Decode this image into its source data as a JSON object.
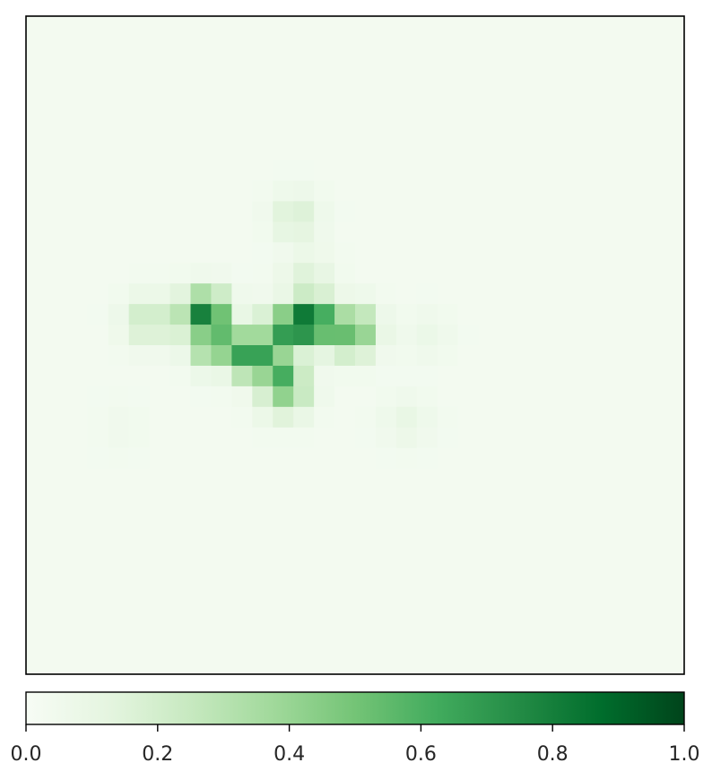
{
  "chart_data": {
    "type": "heatmap",
    "title": "",
    "xlabel": "",
    "ylabel": "",
    "grid": false,
    "axes_ticks_visible": false,
    "colormap": {
      "name": "Greens",
      "stops": [
        "#f7fcf5",
        "#e5f5e0",
        "#c7e9c0",
        "#a1d99b",
        "#74c476",
        "#41ab5d",
        "#238b45",
        "#006d2c",
        "#00441b"
      ]
    },
    "value_range": [
      0.0,
      1.0
    ],
    "grid_size": [
      32,
      32
    ],
    "background_value": 0.03,
    "intensity_regions": [
      {
        "shape": "blob",
        "row": 14.9,
        "col": 13.8,
        "value": 0.99
      },
      {
        "shape": "blob",
        "row": 14.6,
        "col": 8.7,
        "value": 0.82
      },
      {
        "shape": "blob",
        "row": 16.4,
        "col": 11.0,
        "value": 0.8
      },
      {
        "shape": "blob",
        "row": 15.3,
        "col": 12.7,
        "value": 0.72
      },
      {
        "shape": "blob",
        "row": 15.8,
        "col": 9.2,
        "value": 0.62
      },
      {
        "shape": "blob",
        "row": 17.3,
        "col": 12.3,
        "value": 0.65
      },
      {
        "shape": "blob",
        "row": 15.3,
        "col": 15.8,
        "value": 0.58
      },
      {
        "shape": "blob",
        "row": 18.2,
        "col": 12.6,
        "value": 0.45
      },
      {
        "shape": "blob",
        "row": 9.8,
        "col": 13.1,
        "value": 0.18
      },
      {
        "shape": "blob",
        "row": 12.6,
        "col": 13.7,
        "value": 0.15
      },
      {
        "shape": "blob",
        "row": 14.8,
        "col": 6.0,
        "value": 0.25
      },
      {
        "shape": "blob",
        "row": 19.7,
        "col": 18.5,
        "value": 0.1
      },
      {
        "shape": "blob",
        "row": 15.5,
        "col": 19.5,
        "value": 0.08
      },
      {
        "shape": "blob",
        "row": 20.0,
        "col": 4.6,
        "value": 0.05
      }
    ],
    "colorbar": {
      "orientation": "horizontal",
      "ticks": [
        0.0,
        0.2,
        0.4,
        0.6,
        0.8,
        1.0
      ],
      "tick_labels": [
        "0.0",
        "0.2",
        "0.4",
        "0.6",
        "0.8",
        "1.0"
      ]
    }
  }
}
